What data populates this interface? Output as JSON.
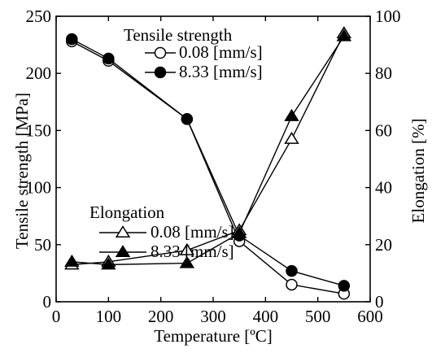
{
  "chart_data": {
    "type": "line",
    "xlabel": "Temperature [ºC]",
    "ylabel_left": "Tensile strength [MPa]",
    "ylabel_right": "Elongation [%]",
    "xlim": [
      0,
      600
    ],
    "ylim_left": [
      0,
      250
    ],
    "ylim_right": [
      0,
      100
    ],
    "x_ticks": [
      "0",
      "100",
      "200",
      "300",
      "400",
      "500",
      "600"
    ],
    "y_left_ticks": [
      "0",
      "50",
      "100",
      "150",
      "200",
      "250"
    ],
    "y_right_ticks": [
      "0",
      "20",
      "40",
      "60",
      "80",
      "100"
    ],
    "grid": false,
    "series": [
      {
        "name": "0.08 [mm/s]",
        "group": "Tensile strength",
        "axis": "left",
        "marker": "circle-open",
        "x": [
          30,
          100,
          250,
          350,
          450,
          550
        ],
        "y": [
          228,
          211,
          160,
          53,
          15,
          7
        ]
      },
      {
        "name": "8.33 [mm/s]",
        "group": "Tensile strength",
        "axis": "left",
        "marker": "circle-filled",
        "x": [
          30,
          100,
          250,
          350,
          450,
          550
        ],
        "y": [
          230,
          213,
          160,
          58,
          27,
          14
        ]
      },
      {
        "name": "0.08 [mm/s]",
        "group": "Elongation",
        "axis": "right",
        "marker": "triangle-open",
        "x": [
          30,
          100,
          250,
          350,
          450,
          550
        ],
        "y": [
          13,
          14,
          18,
          25,
          57,
          94
        ]
      },
      {
        "name": "8.33 [mm/s]",
        "group": "Elongation",
        "axis": "right",
        "marker": "triangle-filled",
        "x": [
          30,
          100,
          250,
          350,
          450,
          550
        ],
        "y": [
          14,
          13,
          13.5,
          24,
          65,
          93
        ]
      }
    ],
    "legends": [
      {
        "title": "Tensile strength",
        "placement": "top-right",
        "entries": [
          {
            "label": "0.08 [mm/s]",
            "marker": "circle-open"
          },
          {
            "label": "8.33 [mm/s]",
            "marker": "circle-filled"
          }
        ]
      },
      {
        "title": "Elongation",
        "placement": "middle-left",
        "entries": [
          {
            "label": "0.08 [mm/s]",
            "marker": "triangle-open"
          },
          {
            "label": "8.33 [mm/s]",
            "marker": "triangle-filled"
          }
        ]
      }
    ]
  }
}
